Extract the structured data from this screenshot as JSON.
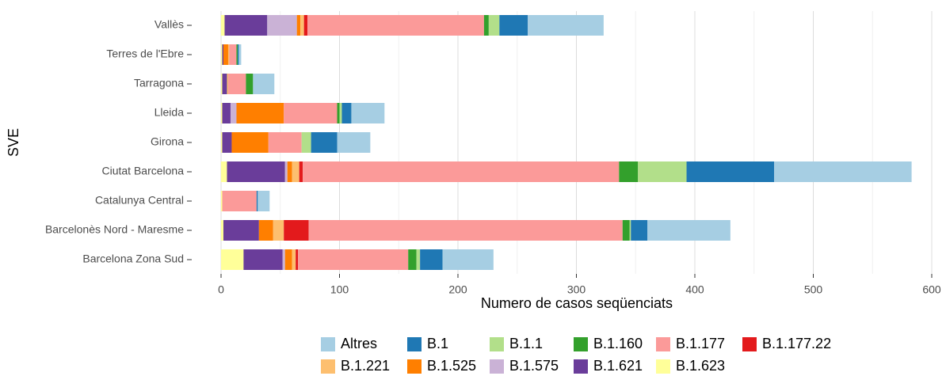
{
  "chart_data": {
    "type": "stacked-barh",
    "x_label": "Numero de casos seqüenciats",
    "y_label": "SVE",
    "categories": [
      "Vallès",
      "Terres de l'Ebre",
      "Tarragona",
      "Lleida",
      "Girona",
      "Ciutat Barcelona",
      "Catalunya Central",
      "Barcelonès Nord - Maresme",
      "Barcelona Zona Sud"
    ],
    "series": [
      {
        "name": "Altres",
        "color": "#a6cee3",
        "values": [
          64,
          2,
          18,
          28,
          28,
          116,
          10,
          70,
          43
        ]
      },
      {
        "name": "B.1",
        "color": "#1f78b4",
        "values": [
          24,
          1,
          0,
          8,
          22,
          74,
          1,
          14,
          19
        ]
      },
      {
        "name": "B.1.1",
        "color": "#b2df8a",
        "values": [
          9,
          0,
          0,
          2,
          8,
          41,
          0,
          1,
          3
        ]
      },
      {
        "name": "B.1.160",
        "color": "#33a02c",
        "values": [
          4,
          1,
          6,
          2,
          0,
          16,
          0,
          6,
          7
        ]
      },
      {
        "name": "B.1.177",
        "color": "#fb9a99",
        "values": [
          149,
          6,
          15,
          45,
          28,
          267,
          29,
          265,
          93
        ]
      },
      {
        "name": "B.1.177.22",
        "color": "#e31a1c",
        "values": [
          3,
          0,
          0,
          0,
          0,
          3,
          0,
          21,
          2
        ]
      },
      {
        "name": "B.1.221",
        "color": "#fdbf6f",
        "values": [
          3,
          1,
          1,
          0,
          0,
          6,
          0,
          9,
          3
        ]
      },
      {
        "name": "B.1.525",
        "color": "#ff7f00",
        "values": [
          3,
          4,
          0,
          40,
          31,
          4,
          0,
          12,
          6
        ]
      },
      {
        "name": "B.1.575",
        "color": "#cab2d6",
        "values": [
          25,
          0,
          0,
          5,
          0,
          2,
          0,
          0,
          2
        ]
      },
      {
        "name": "B.1.621",
        "color": "#6a3d9a",
        "values": [
          36,
          1,
          4,
          7,
          8,
          49,
          0,
          30,
          33
        ]
      },
      {
        "name": "B.1.623",
        "color": "#ffff99",
        "values": [
          3,
          1,
          1,
          1,
          1,
          5,
          1,
          2,
          19
        ]
      }
    ],
    "xlim": [
      0,
      600
    ],
    "xticks": [
      0,
      100,
      200,
      300,
      400,
      500,
      600
    ],
    "grid": true
  }
}
